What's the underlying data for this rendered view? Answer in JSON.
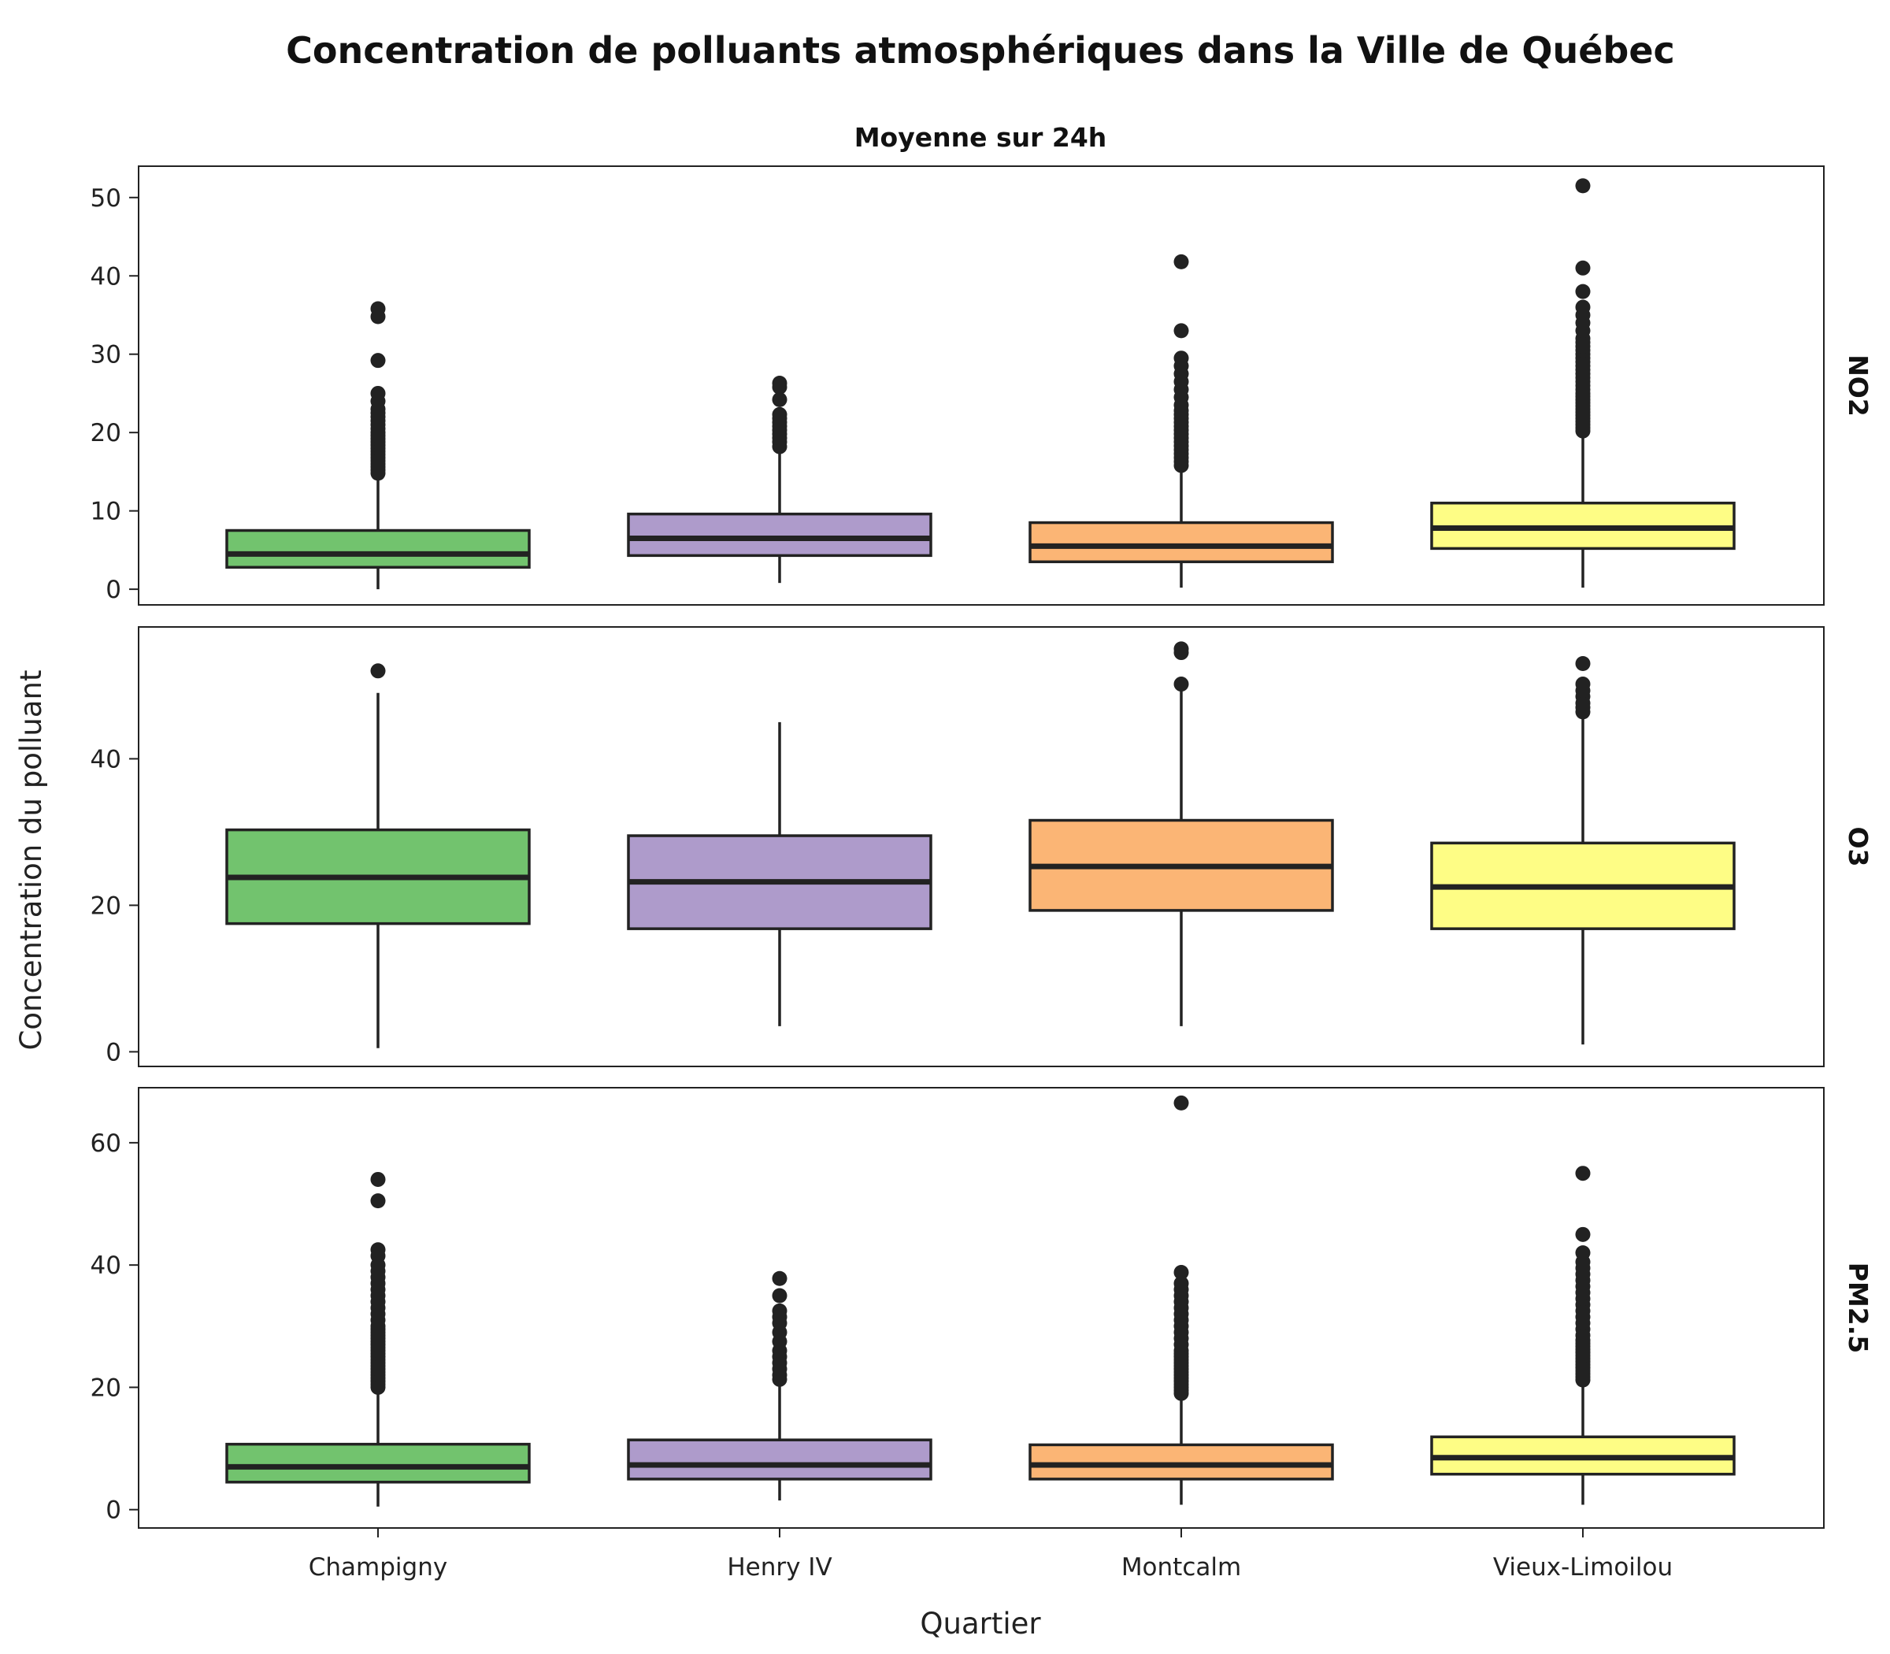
{
  "chart_data": {
    "type": "boxplot",
    "title": "Concentration de polluants atmosphériques dans la Ville de Québec",
    "subtitle": "Moyenne sur 24h",
    "xlabel": "Quartier",
    "ylabel": "Concentration du polluant",
    "categories": [
      "Champigny",
      "Henry IV",
      "Montcalm",
      "Vieux-Limoilou"
    ],
    "colors": {
      "Champigny": "#72c36e",
      "Henry IV": "#ae9bcb",
      "Montcalm": "#fbb575",
      "Vieux-Limoilou": "#fefd85"
    },
    "facets": [
      {
        "label": "NO2",
        "ylim": [
          -2,
          54
        ],
        "yticks": [
          0,
          10,
          20,
          30,
          40,
          50
        ],
        "boxes": [
          {
            "category": "Champigny",
            "whisker_low": 0,
            "q1": 2.8,
            "median": 4.5,
            "q3": 7.5,
            "whisker_high": 14.5,
            "outliers": [
              14.8,
              15.2,
              15.6,
              16,
              16.4,
              16.8,
              17.2,
              17.6,
              18,
              18.4,
              18.8,
              19.2,
              19.6,
              20,
              20.5,
              21,
              21.5,
              22,
              22.5,
              23,
              24,
              25,
              29.2,
              34.8,
              35.8
            ]
          },
          {
            "category": "Henry IV",
            "whisker_low": 0.8,
            "q1": 4.3,
            "median": 6.5,
            "q3": 9.6,
            "whisker_high": 17.8,
            "outliers": [
              18.2,
              18.8,
              19.3,
              19.8,
              20.3,
              20.8,
              21.3,
              21.8,
              22.3,
              24.2,
              25.8,
              26.3
            ]
          },
          {
            "category": "Montcalm",
            "whisker_low": 0.2,
            "q1": 3.5,
            "median": 5.5,
            "q3": 8.5,
            "whisker_high": 15.5,
            "outliers": [
              15.8,
              16.3,
              16.8,
              17.3,
              17.8,
              18.3,
              18.8,
              19.3,
              19.8,
              20.3,
              20.8,
              21.3,
              21.8,
              22.3,
              22.8,
              23.5,
              24.5,
              25.5,
              26.5,
              27.5,
              28.5,
              29.5,
              33,
              41.8
            ]
          },
          {
            "category": "Vieux-Limoilou",
            "whisker_low": 0.2,
            "q1": 5.2,
            "median": 7.8,
            "q3": 11,
            "whisker_high": 20,
            "outliers": [
              20.2,
              20.6,
              21,
              21.4,
              21.8,
              22.2,
              22.6,
              23,
              23.4,
              23.8,
              24.2,
              24.6,
              25,
              25.5,
              26,
              26.5,
              27,
              27.5,
              28,
              28.5,
              29,
              29.5,
              30,
              30.5,
              31,
              31.5,
              32,
              33,
              34,
              35,
              36,
              38,
              41,
              51.5
            ]
          }
        ]
      },
      {
        "label": "O3",
        "ylim": [
          -2,
          58
        ],
        "yticks": [
          0,
          20,
          40
        ],
        "boxes": [
          {
            "category": "Champigny",
            "whisker_low": 0.5,
            "q1": 17.5,
            "median": 23.8,
            "q3": 30.3,
            "whisker_high": 49,
            "outliers": [
              52
            ]
          },
          {
            "category": "Henry IV",
            "whisker_low": 3.5,
            "q1": 16.8,
            "median": 23.2,
            "q3": 29.5,
            "whisker_high": 45,
            "outliers": []
          },
          {
            "category": "Montcalm",
            "whisker_low": 3.5,
            "q1": 19.3,
            "median": 25.3,
            "q3": 31.6,
            "whisker_high": 50,
            "outliers": [
              50.2,
              54.5,
              55
            ]
          },
          {
            "category": "Vieux-Limoilou",
            "whisker_low": 1,
            "q1": 16.8,
            "median": 22.5,
            "q3": 28.5,
            "whisker_high": 46,
            "outliers": [
              46.4,
              47,
              47.6,
              48.5,
              49.3,
              50.2,
              53
            ]
          }
        ]
      },
      {
        "label": "PM2.5",
        "ylim": [
          -3,
          69
        ],
        "yticks": [
          0,
          20,
          40,
          60
        ],
        "boxes": [
          {
            "category": "Champigny",
            "whisker_low": 0.5,
            "q1": 4.5,
            "median": 7,
            "q3": 10.7,
            "whisker_high": 19.8,
            "outliers": [
              20,
              20.5,
              21,
              21.5,
              22,
              22.5,
              23,
              23.5,
              24,
              24.5,
              25,
              25.5,
              26,
              26.5,
              27,
              27.5,
              28,
              28.5,
              29,
              29.5,
              30,
              31,
              32,
              33,
              34,
              35,
              36,
              37,
              38,
              39,
              40,
              41.5,
              42.5,
              50.5,
              54
            ]
          },
          {
            "category": "Henry IV",
            "whisker_low": 1.5,
            "q1": 5,
            "median": 7.3,
            "q3": 11.4,
            "whisker_high": 21,
            "outliers": [
              21.3,
              22,
              23,
              24,
              25,
              26,
              27.5,
              29,
              30.5,
              31.5,
              32.5,
              35,
              37.8
            ]
          },
          {
            "category": "Montcalm",
            "whisker_low": 0.8,
            "q1": 5,
            "median": 7.3,
            "q3": 10.6,
            "whisker_high": 18.8,
            "outliers": [
              19,
              19.5,
              20,
              20.5,
              21,
              21.5,
              22,
              22.5,
              23,
              23.5,
              24,
              24.5,
              25,
              25.5,
              26,
              27,
              28,
              29,
              30,
              31,
              32,
              33,
              34,
              35,
              36,
              37,
              38.8,
              66.5
            ]
          },
          {
            "category": "Vieux-Limoilou",
            "whisker_low": 0.8,
            "q1": 5.8,
            "median": 8.5,
            "q3": 11.9,
            "whisker_high": 21,
            "outliers": [
              21.2,
              21.7,
              22.2,
              22.7,
              23.2,
              23.7,
              24.2,
              24.7,
              25.2,
              25.7,
              26.2,
              26.7,
              27.2,
              27.7,
              28.5,
              29.5,
              30.5,
              31.5,
              32.5,
              33.5,
              34.5,
              35.5,
              36.5,
              37.5,
              38.5,
              39.5,
              40.5,
              42,
              45,
              55
            ]
          }
        ]
      }
    ]
  }
}
